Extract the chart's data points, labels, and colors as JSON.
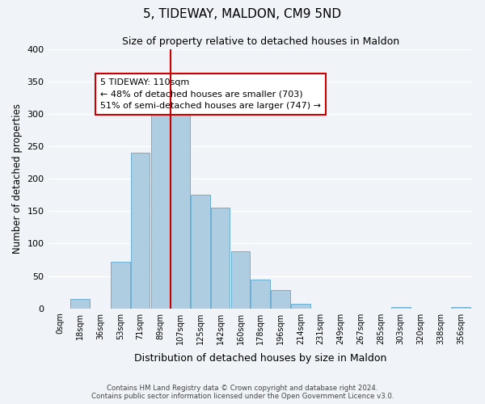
{
  "title": "5, TIDEWAY, MALDON, CM9 5ND",
  "subtitle": "Size of property relative to detached houses in Maldon",
  "xlabel": "Distribution of detached houses by size in Maldon",
  "ylabel": "Number of detached properties",
  "bin_labels": [
    "0sqm",
    "18sqm",
    "36sqm",
    "53sqm",
    "71sqm",
    "89sqm",
    "107sqm",
    "125sqm",
    "142sqm",
    "160sqm",
    "178sqm",
    "196sqm",
    "214sqm",
    "231sqm",
    "249sqm",
    "267sqm",
    "285sqm",
    "303sqm",
    "320sqm",
    "338sqm",
    "356sqm"
  ],
  "bar_values": [
    0,
    15,
    0,
    72,
    240,
    333,
    305,
    175,
    155,
    88,
    45,
    28,
    7,
    0,
    0,
    0,
    0,
    2,
    0,
    0,
    2
  ],
  "bar_color": "#aecde1",
  "bar_edge_color": "#6aafd4",
  "property_line_x": 6,
  "property_line_color": "#cc0000",
  "annotation_text": "5 TIDEWAY: 110sqm\n← 48% of detached houses are smaller (703)\n51% of semi-detached houses are larger (747) →",
  "annotation_box_color": "#ffffff",
  "annotation_box_edge_color": "#cc0000",
  "ylim": [
    0,
    400
  ],
  "yticks": [
    0,
    50,
    100,
    150,
    200,
    250,
    300,
    350,
    400
  ],
  "footer_line1": "Contains HM Land Registry data © Crown copyright and database right 2024.",
  "footer_line2": "Contains public sector information licensed under the Open Government Licence v3.0.",
  "background_color": "#f0f4f8"
}
